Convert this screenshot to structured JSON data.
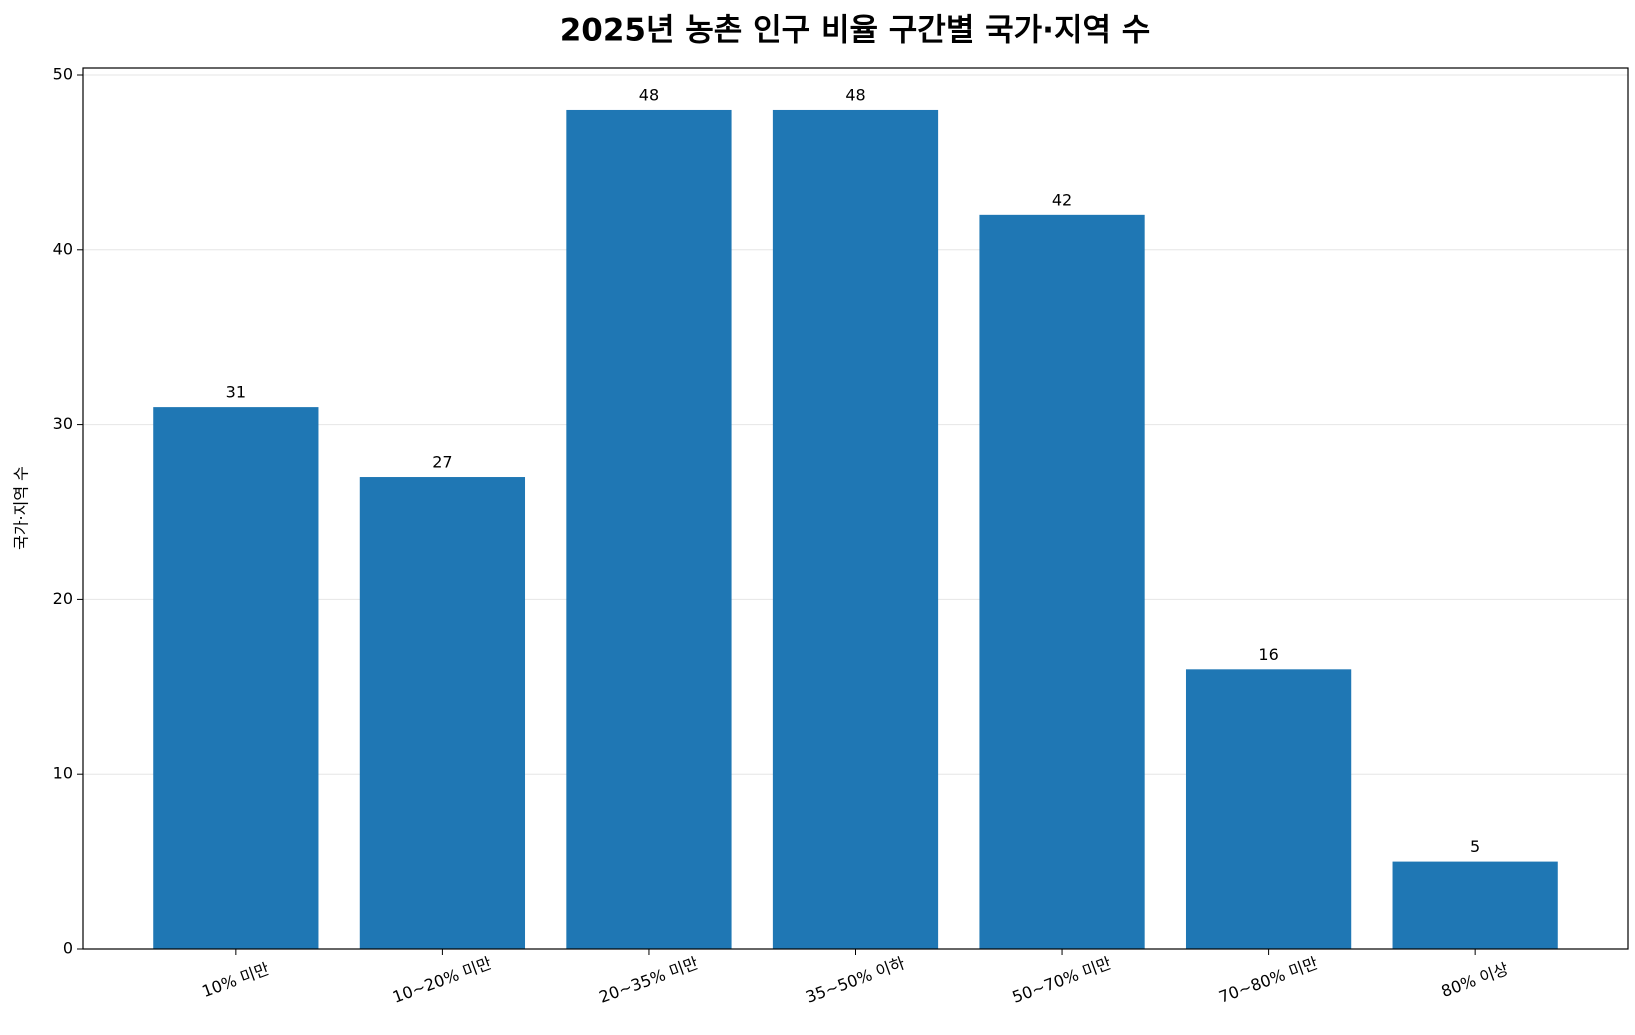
{
  "chart_data": {
    "type": "bar",
    "title": "2025년 농촌 인구 비율 구간별 국가·지역 수",
    "y_label": "국가·지역 수",
    "categories": [
      "10% 미만",
      "10~20% 미만",
      "20~35% 미만",
      "35~50% 이하",
      "50~70% 미만",
      "70~80% 미만",
      "80% 이상"
    ],
    "values": [
      31,
      27,
      48,
      48,
      42,
      16,
      5
    ],
    "color": "#1f77b4",
    "ylim": [
      0,
      50.4
    ],
    "yticks": [
      0,
      10,
      20,
      30,
      40,
      50
    ],
    "grid": true
  }
}
